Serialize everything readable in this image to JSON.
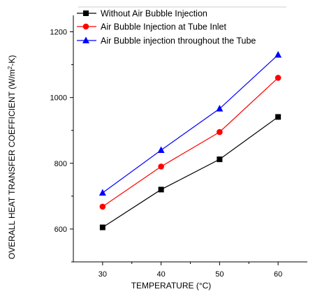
{
  "chart_data": {
    "type": "line",
    "title": "",
    "xlabel": "TEMPERATURE (°C)",
    "ylabel": "OVERALL HEAT TRANSFER COEFFICIENT (W/m",
    "ylabel_sup": "2",
    "ylabel_tail": "-K)",
    "x": [
      30,
      40,
      50,
      60
    ],
    "xlim": [
      25,
      65
    ],
    "ylim": [
      500,
      1250
    ],
    "xticks": [
      "30",
      "40",
      "50",
      "60"
    ],
    "yticks": [
      "600",
      "800",
      "1000",
      "1200"
    ],
    "ytick_values": [
      600,
      800,
      1000,
      1200
    ],
    "grid": false,
    "legend_position": "top",
    "series": [
      {
        "name": "Without Air Bubble Injection",
        "values": [
          605,
          720,
          812,
          941
        ],
        "color": "#000000",
        "marker": "square"
      },
      {
        "name": "Air Bubble Injection at Tube Inlet",
        "values": [
          668,
          790,
          895,
          1060
        ],
        "color": "#ff0000",
        "marker": "circle"
      },
      {
        "name": "Air Bubble injection throughout the Tube",
        "values": [
          710,
          840,
          966,
          1130
        ],
        "color": "#0000ff",
        "marker": "triangle"
      }
    ]
  }
}
